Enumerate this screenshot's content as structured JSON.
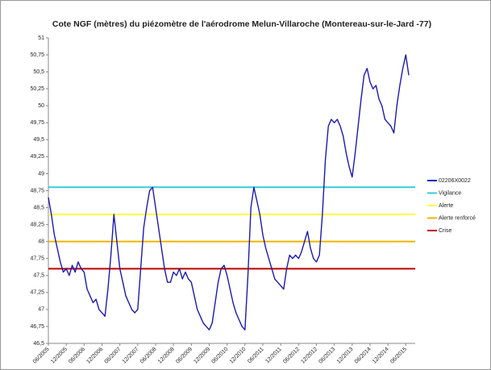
{
  "chart_data": {
    "type": "line",
    "title": "Cote NGF (mètres) du piézomètre de l'aérodrome Melun-Villaroche (Montereau-sur-le-Jard -77)",
    "x": [
      "06/2005",
      "07/2005",
      "08/2005",
      "09/2005",
      "10/2005",
      "11/2005",
      "12/2005",
      "01/2006",
      "02/2006",
      "03/2006",
      "04/2006",
      "05/2006",
      "06/2006",
      "07/2006",
      "08/2006",
      "09/2006",
      "10/2006",
      "11/2006",
      "12/2006",
      "01/2007",
      "02/2007",
      "03/2007",
      "04/2007",
      "05/2007",
      "06/2007",
      "07/2007",
      "08/2007",
      "09/2007",
      "10/2007",
      "11/2007",
      "12/2007",
      "01/2008",
      "02/2008",
      "03/2008",
      "04/2008",
      "05/2008",
      "06/2008",
      "07/2008",
      "08/2008",
      "09/2008",
      "10/2008",
      "11/2008",
      "12/2008",
      "01/2009",
      "02/2009",
      "03/2009",
      "04/2009",
      "05/2009",
      "06/2009",
      "07/2009",
      "08/2009",
      "09/2009",
      "10/2009",
      "11/2009",
      "12/2009",
      "01/2010",
      "02/2010",
      "03/2010",
      "04/2010",
      "05/2010",
      "06/2010",
      "07/2010",
      "08/2010",
      "09/2010",
      "10/2010",
      "11/2010",
      "12/2010",
      "01/2011",
      "02/2011",
      "03/2011",
      "04/2011",
      "05/2011",
      "06/2011",
      "07/2011",
      "08/2011",
      "09/2011",
      "10/2011",
      "11/2011",
      "12/2011",
      "01/2012",
      "02/2012",
      "03/2012",
      "04/2012",
      "05/2012",
      "06/2012",
      "07/2012",
      "08/2012",
      "09/2012",
      "10/2012",
      "11/2012",
      "12/2012",
      "01/2013",
      "02/2013",
      "03/2013",
      "04/2013",
      "05/2013",
      "06/2013",
      "07/2013",
      "08/2013",
      "09/2013",
      "10/2013",
      "11/2013",
      "12/2013",
      "01/2014",
      "02/2014",
      "03/2014",
      "04/2014",
      "05/2014",
      "06/2014",
      "07/2014",
      "08/2014",
      "09/2014",
      "10/2014",
      "11/2014",
      "12/2014",
      "01/2015",
      "02/2015",
      "03/2015",
      "04/2015",
      "05/2015",
      "06/2015",
      "07/2015"
    ],
    "xticks": [
      "06/2005",
      "12/2005",
      "06/2006",
      "12/2006",
      "06/2007",
      "12/2007",
      "06/2008",
      "12/2008",
      "06/2009",
      "12/2009",
      "06/2010",
      "12/2010",
      "06/2011",
      "12/2011",
      "06/2012",
      "12/2012",
      "06/2013",
      "12/2013",
      "06/2014",
      "12/2014",
      "06/2015"
    ],
    "series": [
      {
        "name": "02206X0022",
        "color": "#1a1ab0",
        "values": [
          48.65,
          48.4,
          48.1,
          47.9,
          47.7,
          47.55,
          47.6,
          47.5,
          47.65,
          47.55,
          47.7,
          47.6,
          47.55,
          47.3,
          47.2,
          47.1,
          47.15,
          47.0,
          46.95,
          46.9,
          47.3,
          47.8,
          48.4,
          48.0,
          47.6,
          47.4,
          47.2,
          47.1,
          47.0,
          46.95,
          47.0,
          47.6,
          48.2,
          48.5,
          48.75,
          48.8,
          48.5,
          48.2,
          47.9,
          47.6,
          47.4,
          47.4,
          47.55,
          47.5,
          47.6,
          47.45,
          47.55,
          47.45,
          47.4,
          47.2,
          47.0,
          46.9,
          46.8,
          46.75,
          46.7,
          46.8,
          47.1,
          47.4,
          47.6,
          47.65,
          47.5,
          47.3,
          47.1,
          46.95,
          46.85,
          46.75,
          46.7,
          47.5,
          48.5,
          48.8,
          48.6,
          48.4,
          48.1,
          47.9,
          47.75,
          47.6,
          47.45,
          47.4,
          47.35,
          47.3,
          47.6,
          47.8,
          47.75,
          47.8,
          47.75,
          47.85,
          48.0,
          48.15,
          47.9,
          47.75,
          47.7,
          47.8,
          48.4,
          49.2,
          49.7,
          49.8,
          49.75,
          49.8,
          49.7,
          49.55,
          49.3,
          49.1,
          48.95,
          49.3,
          49.7,
          50.1,
          50.45,
          50.55,
          50.35,
          50.25,
          50.3,
          50.1,
          50.0,
          49.8,
          49.75,
          49.7,
          49.6,
          50.0,
          50.3,
          50.55,
          50.75,
          50.45
        ]
      }
    ],
    "hlines": [
      {
        "name": "Vigilance",
        "color": "#33ccdd",
        "value": 48.8
      },
      {
        "name": "Alerte",
        "color": "#ffff44",
        "value": 48.4
      },
      {
        "name": "Alerte renforcé",
        "color": "#f0b400",
        "value": 48
      },
      {
        "name": "Crise",
        "color": "#c00000",
        "value": 47.6
      }
    ],
    "ylim": [
      46.5,
      51
    ],
    "yticks": [
      {
        "value": 46.5,
        "label": "46,5"
      },
      {
        "value": 46.75,
        "label": "46,75"
      },
      47,
      {
        "value": 47.25,
        "label": "47,25"
      },
      {
        "value": 47.5,
        "label": "47,5"
      },
      {
        "value": 47.75,
        "label": "47,75"
      },
      48,
      {
        "value": 48.25,
        "label": "48,25"
      },
      {
        "value": 48.5,
        "label": "48,5"
      },
      {
        "value": 48.75,
        "label": "48,75"
      },
      49,
      {
        "value": 49.25,
        "label": "49,25"
      },
      {
        "value": 49.5,
        "label": "49,5"
      },
      {
        "value": 49.75,
        "label": "49,75"
      },
      50,
      {
        "value": 50.25,
        "label": "50,25"
      },
      {
        "value": 50.5,
        "label": "50,5"
      },
      {
        "value": 50.75,
        "label": "50,75"
      },
      51
    ],
    "grid": false,
    "legend": "right"
  }
}
